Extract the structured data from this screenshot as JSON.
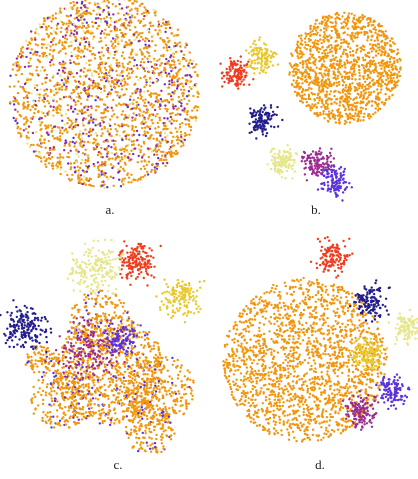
{
  "panels": [
    {
      "label": "a."
    },
    {
      "label": "b."
    },
    {
      "label": "c."
    },
    {
      "label": "d."
    }
  ]
}
